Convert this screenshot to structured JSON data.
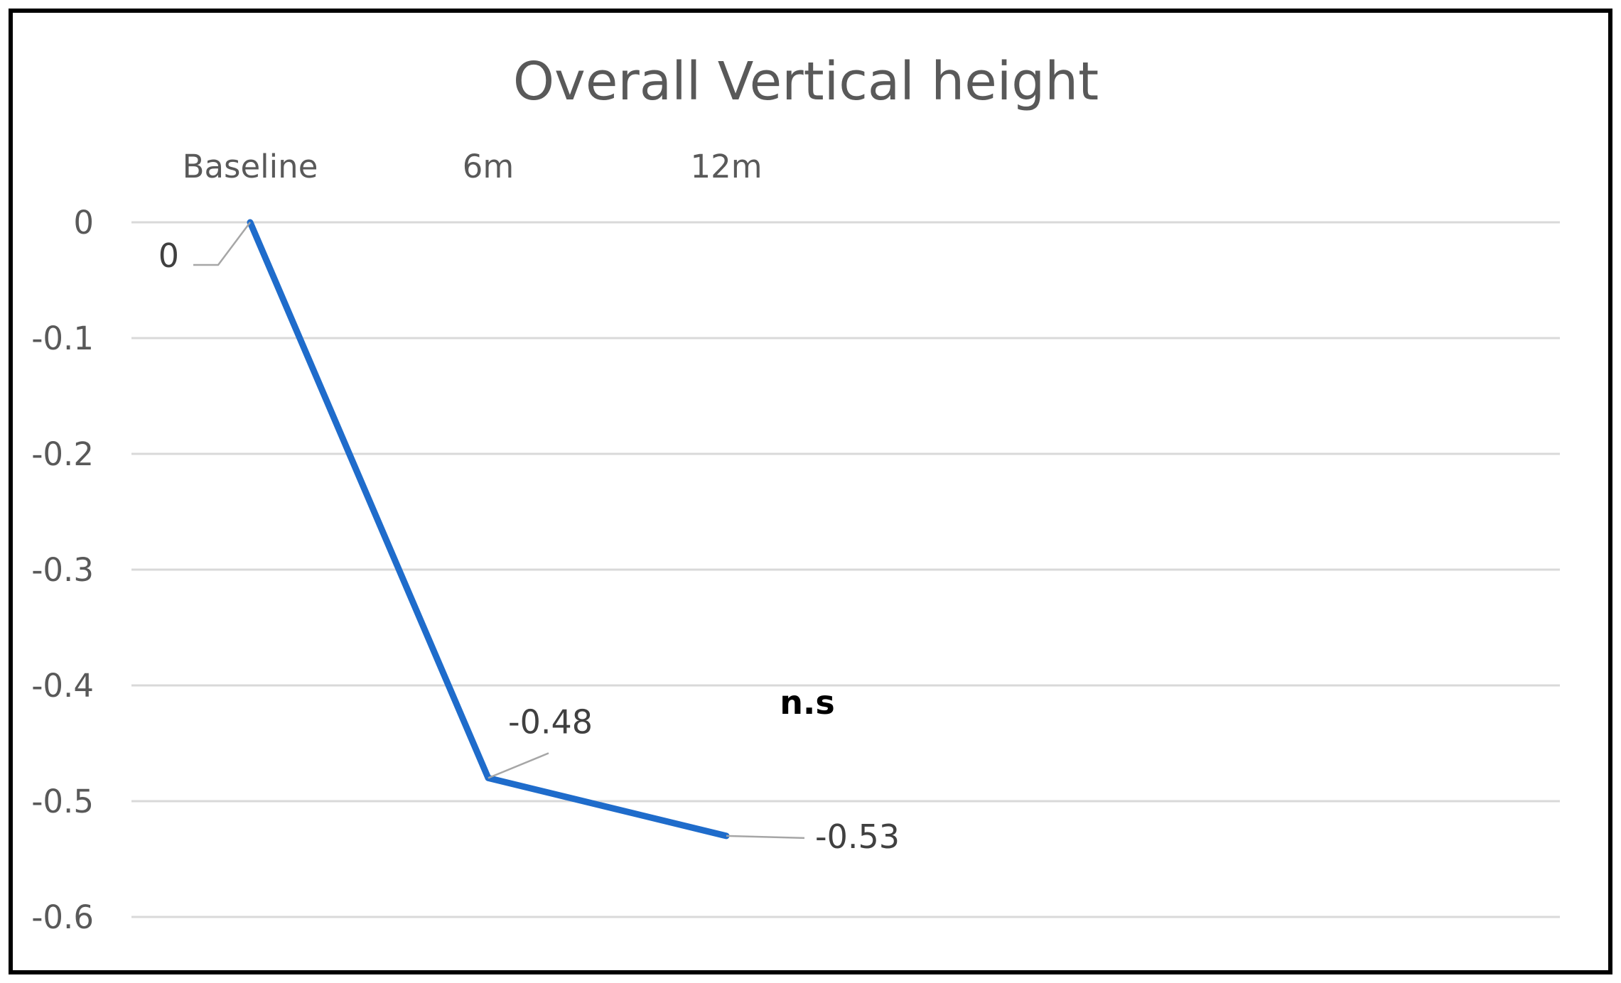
{
  "chart_data": {
    "type": "line",
    "title": "Overall Vertical height",
    "categories": [
      "Baseline",
      "6m",
      "12m"
    ],
    "series": [
      {
        "values": [
          0,
          -0.48,
          -0.53
        ]
      }
    ],
    "data_labels": [
      "0",
      "-0.48",
      "-0.53"
    ],
    "y_ticks": [
      0,
      -0.1,
      -0.2,
      -0.3,
      -0.4,
      -0.5,
      -0.6
    ],
    "y_tick_labels": [
      "0",
      "-0.1",
      "-0.2",
      "-0.3",
      "-0.4",
      "-0.5",
      "-0.6"
    ],
    "ylim": [
      -0.6,
      0
    ],
    "xlabel": "",
    "ylabel": "",
    "grid": true,
    "legend": "none",
    "annotation": "n.s",
    "colors": {
      "line": "#1F6CCB",
      "grid": "#D9D9D9",
      "leader": "#A6A6A6",
      "border": "#000000"
    }
  }
}
